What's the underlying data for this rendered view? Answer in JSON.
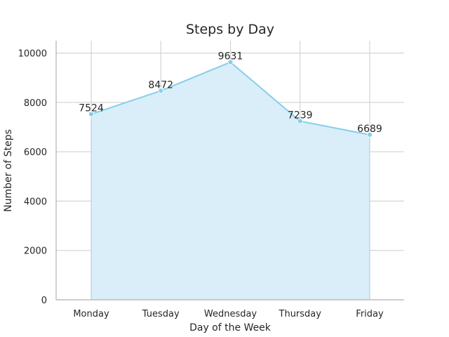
{
  "chart_data": {
    "type": "area",
    "title": "Steps by Day",
    "xlabel": "Day of the Week",
    "ylabel": "Number of Steps",
    "categories": [
      "Monday",
      "Tuesday",
      "Wednesday",
      "Thursday",
      "Friday"
    ],
    "values": [
      7524,
      8472,
      9631,
      7239,
      6689
    ],
    "ylim": [
      0,
      10500
    ],
    "yticks": [
      0,
      2000,
      4000,
      6000,
      8000,
      10000
    ],
    "grid": true,
    "legend": "none",
    "data_labels": [
      "7524",
      "8472",
      "9631",
      "7239",
      "6689"
    ],
    "colors": {
      "line": "#87ceeb",
      "fill": "#d9eef8",
      "grid": "#cccccc",
      "axis": "#b0b0b0",
      "text": "#262626"
    }
  }
}
